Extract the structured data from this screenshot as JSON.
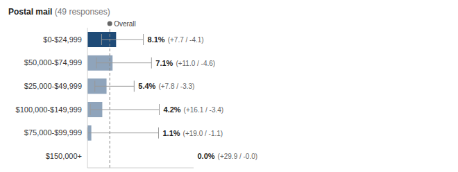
{
  "chart_data": {
    "type": "bar",
    "orientation": "horizontal",
    "title": "Postal mail",
    "subtitle": "(49 responses)",
    "categories": [
      "$0-$24,999",
      "$50,000-$74,999",
      "$25,000-$49,999",
      "$100,000-$149,999",
      "$75,000-$99,999",
      "$150,000+"
    ],
    "values": [
      8.1,
      7.1,
      5.4,
      4.2,
      1.1,
      0.0
    ],
    "value_labels": [
      "8.1%",
      "7.1%",
      "5.4%",
      "4.2%",
      "1.1%",
      "0.0%"
    ],
    "error_plus": [
      7.7,
      11.0,
      7.8,
      16.1,
      19.0,
      29.9
    ],
    "error_minus": [
      4.1,
      4.6,
      3.3,
      3.4,
      1.1,
      0.0
    ],
    "error_labels": [
      "(+7.7 / -4.1)",
      "(+11.0 / -4.6)",
      "(+7.8 / -3.3)",
      "(+16.1 / -3.4)",
      "(+19.0 / -1.1)",
      "(+29.9 / -0.0)"
    ],
    "colors": [
      "#1f4b77",
      "#8fa4bb",
      "#8fa4bb",
      "#8fa4bb",
      "#8fa4bb",
      "#8fa4bb"
    ],
    "xlim": [
      0,
      30
    ],
    "xticks": [],
    "tick_labels": "y",
    "data_labels": true,
    "grid": false,
    "reference_line": {
      "value": 6.3,
      "label": "Overall"
    }
  }
}
